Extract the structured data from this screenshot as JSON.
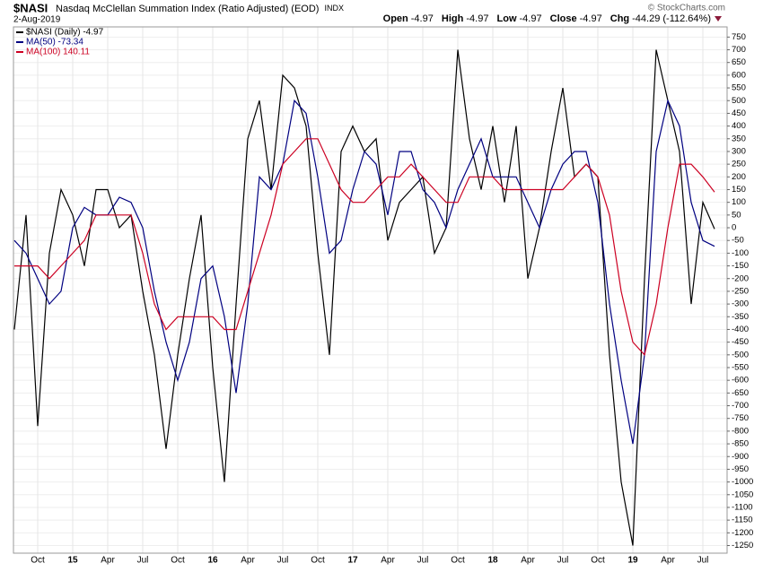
{
  "header": {
    "symbol": "$NASI",
    "title": "Nasdaq McClellan Summation Index (Ratio Adjusted) (EOD)",
    "exchange": "INDX",
    "date": "2-Aug-2019",
    "quote": [
      {
        "label": "Open",
        "value": "-4.97"
      },
      {
        "label": "High",
        "value": "-4.97"
      },
      {
        "label": "Low",
        "value": "-4.97"
      },
      {
        "label": "Close",
        "value": "-4.97"
      },
      {
        "label": "Chg",
        "value": "-44.29 (-112.64%)"
      }
    ],
    "copyright": "© StockCharts.com"
  },
  "chart_data": {
    "type": "line",
    "categories": [
      null,
      null,
      "Oct",
      null,
      null,
      "15",
      null,
      null,
      "Apr",
      null,
      null,
      "Jul",
      null,
      null,
      "Oct",
      null,
      null,
      "16",
      null,
      null,
      "Apr",
      null,
      null,
      "Jul",
      null,
      null,
      "Oct",
      null,
      null,
      "17",
      null,
      null,
      "Apr",
      null,
      null,
      "Jul",
      null,
      null,
      "Oct",
      null,
      null,
      "18",
      null,
      null,
      "Apr",
      null,
      null,
      "Jul",
      null,
      null,
      "Oct",
      null,
      null,
      "19",
      null,
      null,
      "Apr",
      null,
      null,
      "Jul",
      null
    ],
    "series": [
      {
        "name": "$NASI (Daily) -4.97",
        "color": "#000000",
        "values": [
          -400,
          50,
          -780,
          -100,
          150,
          50,
          -150,
          150,
          150,
          0,
          50,
          -250,
          -500,
          -870,
          -500,
          -200,
          50,
          -550,
          -1000,
          -300,
          350,
          500,
          150,
          600,
          550,
          400,
          -100,
          -500,
          300,
          400,
          300,
          350,
          -50,
          100,
          150,
          200,
          -100,
          0,
          700,
          350,
          150,
          400,
          100,
          400,
          -200,
          0,
          300,
          550,
          200,
          250,
          200,
          -500,
          -1000,
          -1250,
          -200,
          700,
          500,
          300,
          -300,
          100,
          -5
        ]
      },
      {
        "name": "MA(50) -73.34",
        "color": "#000080",
        "values": [
          -50,
          -100,
          -200,
          -300,
          -250,
          0,
          80,
          50,
          50,
          120,
          100,
          0,
          -250,
          -450,
          -600,
          -450,
          -200,
          -150,
          -350,
          -650,
          -300,
          200,
          150,
          250,
          500,
          450,
          200,
          -100,
          -50,
          150,
          300,
          250,
          50,
          300,
          300,
          150,
          100,
          0,
          150,
          250,
          350,
          200,
          200,
          200,
          100,
          0,
          150,
          250,
          300,
          300,
          100,
          -300,
          -600,
          -850,
          -500,
          300,
          500,
          400,
          100,
          -50,
          -73
        ]
      },
      {
        "name": "MA(100) 140.11",
        "color": "#cc0022",
        "values": [
          -150,
          -150,
          -150,
          -200,
          -150,
          -100,
          -50,
          50,
          50,
          50,
          50,
          -100,
          -300,
          -400,
          -350,
          -350,
          -350,
          -350,
          -400,
          -400,
          -250,
          -100,
          50,
          250,
          300,
          350,
          350,
          250,
          150,
          100,
          100,
          150,
          200,
          200,
          250,
          200,
          150,
          100,
          100,
          200,
          200,
          200,
          150,
          150,
          150,
          150,
          150,
          150,
          200,
          250,
          200,
          50,
          -250,
          -450,
          -500,
          -300,
          0,
          250,
          250,
          200,
          140
        ]
      }
    ],
    "ylim": [
      -1280,
      790
    ],
    "yticks": [
      750,
      700,
      650,
      600,
      550,
      500,
      450,
      400,
      350,
      300,
      250,
      200,
      150,
      100,
      50,
      0,
      -50,
      -100,
      -150,
      -200,
      -250,
      -300,
      -350,
      -400,
      -450,
      -500,
      -550,
      -600,
      -650,
      -700,
      -750,
      -800,
      -850,
      -900,
      -950,
      -1000,
      -1050,
      -1100,
      -1150,
      -1200,
      -1250
    ],
    "grid": true
  }
}
